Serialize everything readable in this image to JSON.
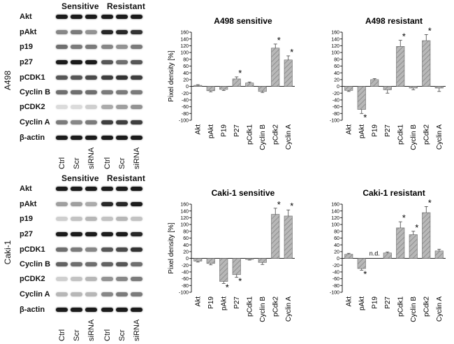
{
  "panels": [
    {
      "cell_line": "A498",
      "blot_header": {
        "group1": "Sensitive",
        "group2": "Resistant"
      },
      "blot_rows": [
        "Akt",
        "pAkt",
        "p19",
        "p27",
        "pCDK1",
        "Cyclin B",
        "pCDK2",
        "Cyclin A",
        "β-actin"
      ],
      "lanes": [
        "Ctrl",
        "Scr",
        "siRNA",
        "Ctrl",
        "Scr",
        "siRNA"
      ]
    },
    {
      "cell_line": "Caki-1",
      "blot_header": {
        "group1": "Sensitive",
        "group2": "Resistant"
      },
      "blot_rows": [
        "Akt",
        "pAkt",
        "p19",
        "p27",
        "pCDK1",
        "Cyclin B",
        "pCDK2",
        "Cyclin A",
        "β-actin"
      ],
      "lanes": [
        "Ctrl",
        "Scr",
        "siRNA",
        "Ctrl",
        "Scr",
        "siRNA"
      ]
    }
  ],
  "chart_data": [
    {
      "type": "bar",
      "title": "A498 sensitive",
      "ylabel": "Pixel density [%]",
      "ylim": [
        -100,
        160
      ],
      "yticks": [
        -100,
        -80,
        -60,
        -40,
        -20,
        0,
        20,
        40,
        60,
        80,
        100,
        120,
        140,
        160
      ],
      "categories": [
        "Akt",
        "pAkt",
        "P19",
        "P27",
        "pCdk1",
        "Cyclin B",
        "pCdk2",
        "Cyclin A"
      ],
      "values": [
        3,
        -13,
        -9,
        22,
        10,
        -15,
        113,
        78
      ],
      "errors": [
        2,
        3,
        3,
        6,
        3,
        3,
        12,
        12
      ],
      "annotations": [
        "",
        "",
        "",
        "*",
        "",
        "",
        "*",
        "*"
      ]
    },
    {
      "type": "bar",
      "title": "A498 resistant",
      "ylabel": "",
      "ylim": [
        -100,
        160
      ],
      "yticks": [
        -100,
        -80,
        -60,
        -40,
        -20,
        0,
        20,
        40,
        60,
        80,
        100,
        120,
        140,
        160
      ],
      "categories": [
        "Akt",
        "pAkt",
        "P19",
        "P27",
        "pCdk1",
        "Cyclin B",
        "pCdk2",
        "Cyclin A"
      ],
      "values": [
        -12,
        -68,
        20,
        -10,
        118,
        -5,
        135,
        -5
      ],
      "errors": [
        3,
        12,
        3,
        10,
        18,
        5,
        18,
        10
      ],
      "annotations": [
        "",
        "*",
        "",
        "",
        "*",
        "",
        "*",
        ""
      ]
    },
    {
      "type": "bar",
      "title": "Caki-1 sensitive",
      "ylabel": "Pixel density [%]",
      "ylim": [
        -100,
        160
      ],
      "yticks": [
        -100,
        -80,
        -60,
        -40,
        -20,
        0,
        20,
        40,
        60,
        80,
        100,
        120,
        140,
        160
      ],
      "categories": [
        "Akt",
        "P19",
        "pAkt",
        "P27",
        "pCdk1",
        "Cyclin B",
        "pCdk2",
        "Cyclin A"
      ],
      "values": [
        -8,
        -15,
        -68,
        -48,
        -3,
        -12,
        130,
        125
      ],
      "errors": [
        3,
        4,
        6,
        8,
        2,
        6,
        18,
        18
      ],
      "annotations": [
        "",
        "",
        "*",
        "*",
        "",
        "",
        "*",
        "*"
      ]
    },
    {
      "type": "bar",
      "title": "Caki-1 resistant",
      "ylabel": "",
      "ylim": [
        -100,
        160
      ],
      "yticks": [
        -100,
        -80,
        -60,
        -40,
        -20,
        0,
        20,
        40,
        60,
        80,
        100,
        120,
        140,
        160
      ],
      "categories": [
        "Akt",
        "pAkt",
        "P19",
        "P27",
        "pCdk1",
        "Cyclin B",
        "pCdk2",
        "Cyclin A"
      ],
      "values": [
        12,
        -30,
        null,
        16,
        90,
        70,
        135,
        22
      ],
      "errors": [
        3,
        5,
        0,
        3,
        18,
        10,
        18,
        5
      ],
      "annotations": [
        "",
        "*",
        "n.d.",
        "",
        "*",
        "*",
        "*",
        ""
      ]
    }
  ]
}
